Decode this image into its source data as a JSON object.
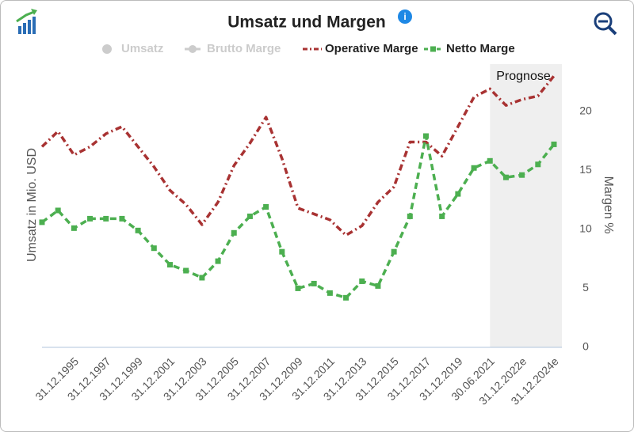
{
  "chart_data": {
    "type": "line",
    "title": "Umsatz und Margen",
    "y_label_left": "Umsatz in Mio. USD",
    "y_label": "Margen %",
    "forecast_label": "Prognose",
    "categories": [
      null,
      null,
      "31.12.1995",
      null,
      "31.12.1997",
      null,
      "31.12.1999",
      null,
      "31.12.2001",
      null,
      "31.12.2003",
      null,
      "31.12.2005",
      null,
      "31.12.2007",
      null,
      "31.12.2009",
      null,
      "31.12.2011",
      null,
      "31.12.2013",
      null,
      "31.12.2015",
      null,
      "31.12.2017",
      null,
      "31.12.2019",
      null,
      "30.06.2021",
      null,
      "31.12.2022e",
      null,
      "31.12.2024e"
    ],
    "forecast_start": 28,
    "ylim": [
      0,
      24
    ],
    "yticks": [
      0,
      5,
      10,
      15,
      20
    ],
    "series": [
      {
        "name": "Umsatz",
        "color": "#cccccc",
        "visible": false,
        "style": "dot"
      },
      {
        "name": "Brutto Marge",
        "color": "#cccccc",
        "visible": false,
        "style": "line-dot"
      },
      {
        "name": "Operative Marge",
        "color": "#a83232",
        "visible": true,
        "style": "dash-dot",
        "values": [
          17.0,
          18.3,
          16.3,
          17.0,
          18.1,
          18.7,
          17.0,
          15.3,
          13.3,
          12.1,
          10.4,
          12.3,
          15.4,
          17.3,
          19.5,
          16.0,
          11.8,
          11.3,
          10.8,
          9.5,
          10.3,
          12.3,
          13.6,
          17.4,
          17.4,
          16.2,
          18.7,
          21.2,
          21.9,
          20.5,
          21.0,
          21.3,
          23.0
        ]
      },
      {
        "name": "Netto Marge",
        "color": "#4caf50",
        "visible": true,
        "style": "dash-square",
        "values": [
          10.6,
          11.6,
          10.1,
          10.9,
          10.9,
          10.9,
          9.9,
          8.4,
          7.0,
          6.5,
          5.9,
          7.3,
          9.7,
          11.1,
          11.9,
          8.1,
          5.0,
          5.4,
          4.6,
          4.2,
          5.6,
          5.2,
          8.1,
          11.1,
          17.9,
          11.1,
          13.0,
          15.2,
          15.8,
          14.4,
          14.6,
          15.5,
          17.2
        ]
      }
    ]
  }
}
